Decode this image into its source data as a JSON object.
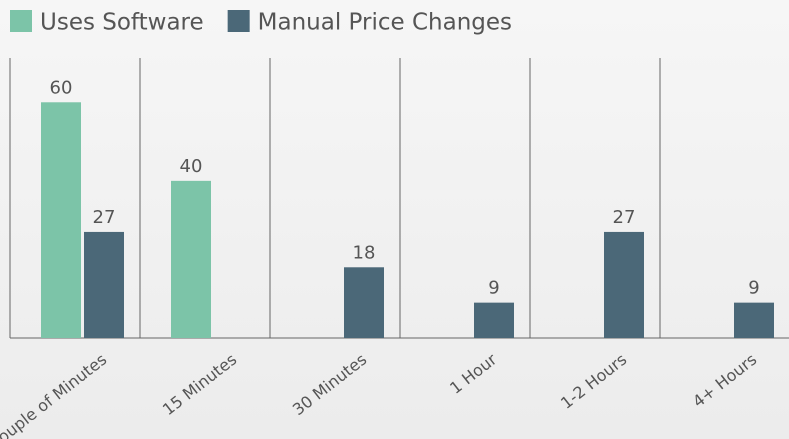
{
  "chart_data": {
    "type": "bar",
    "categories": [
      "Couple of Minutes",
      "15 Minutes",
      "30 Minutes",
      "1 Hour",
      "1-2 Hours",
      "4+ Hours"
    ],
    "series": [
      {
        "name": "Uses Software",
        "color": "#7cc4a8",
        "values": [
          60,
          40,
          null,
          null,
          null,
          null
        ]
      },
      {
        "name": "Manual Price Changes",
        "color": "#4b6878",
        "values": [
          27,
          null,
          18,
          9,
          27,
          9
        ]
      }
    ],
    "ylim": [
      0,
      70
    ],
    "legend": "top-left"
  }
}
